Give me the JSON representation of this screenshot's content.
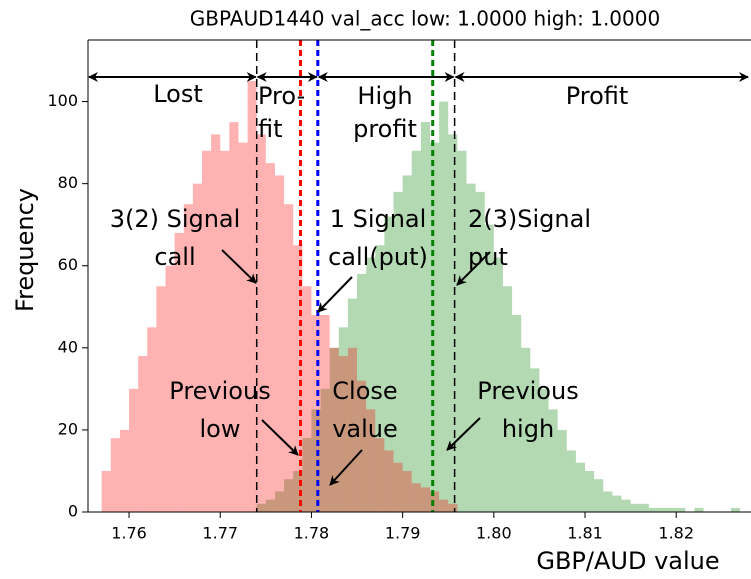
{
  "chart_data": {
    "type": "histogram",
    "title": "GBPAUD1440 val_acc low: 1.0000 high: 1.0000",
    "xlabel": "GBP/AUD value",
    "ylabel": "Frequency",
    "xlim": [
      1.7555,
      1.8282
    ],
    "ylim": [
      0,
      115
    ],
    "xticks": [
      1.76,
      1.77,
      1.78,
      1.79,
      {
        "value": 1.8,
        "label": "1.80"
      },
      1.81,
      1.82
    ],
    "yticks": [
      0,
      20,
      40,
      60,
      80,
      100
    ],
    "opacity": 0.3,
    "series": [
      {
        "color": "#008000",
        "bins": [
          1.774,
          1.775,
          1.776,
          1.777,
          1.778,
          1.779,
          1.78,
          1.781,
          1.782,
          1.783,
          1.784,
          1.785,
          1.786,
          1.787,
          1.788,
          1.789,
          1.79,
          1.791,
          1.792,
          1.793,
          1.794,
          1.795,
          1.796,
          1.797,
          1.798,
          1.799,
          1.8,
          1.801,
          1.802,
          1.803,
          1.804,
          1.805,
          1.806,
          1.807,
          1.808,
          1.809,
          1.81,
          1.811,
          1.812,
          1.813,
          1.814,
          1.815,
          1.816,
          1.817,
          1.818,
          1.819,
          1.82,
          1.821,
          1.822,
          1.823,
          1.824,
          1.825,
          1.826,
          1.827
        ],
        "values": [
          2,
          3,
          5,
          8,
          10,
          18,
          25,
          30,
          40,
          45,
          52,
          58,
          62,
          65,
          72,
          78,
          82,
          88,
          95,
          90,
          100,
          92,
          88,
          80,
          78,
          70,
          62,
          55,
          48,
          40,
          35,
          30,
          25,
          20,
          15,
          12,
          10,
          8,
          5,
          4,
          3,
          2,
          2,
          1,
          1,
          1,
          1,
          0,
          1,
          0,
          0,
          0,
          1
        ]
      },
      {
        "color": "#ff0000",
        "bins": [
          1.757,
          1.758,
          1.759,
          1.76,
          1.761,
          1.762,
          1.763,
          1.764,
          1.765,
          1.766,
          1.767,
          1.768,
          1.769,
          1.77,
          1.771,
          1.772,
          1.773,
          1.774,
          1.775,
          1.776,
          1.777,
          1.778,
          1.779,
          1.78,
          1.781,
          1.782,
          1.783,
          1.784,
          1.785,
          1.786,
          1.787,
          1.788,
          1.789,
          1.79,
          1.791,
          1.792,
          1.793,
          1.794,
          1.795,
          1.796
        ],
        "values": [
          10,
          18,
          20,
          30,
          38,
          45,
          55,
          60,
          68,
          75,
          80,
          88,
          92,
          88,
          95,
          90,
          105,
          92,
          85,
          82,
          75,
          65,
          55,
          48,
          48,
          40,
          38,
          40,
          32,
          25,
          18,
          15,
          12,
          10,
          7,
          6,
          5,
          3,
          2
        ]
      }
    ],
    "vlines": [
      {
        "value": 1.774,
        "color": "#000000"
      },
      {
        "value": 1.7788,
        "color": "#ff0000"
      },
      {
        "value": 1.7807,
        "color": "#0000ff"
      },
      {
        "value": 1.7933,
        "color": "#008000"
      },
      {
        "value": 1.7957,
        "color": "#000000"
      }
    ],
    "annotations": [
      {
        "lines": [
          "Lost"
        ]
      },
      {
        "lines": [
          "Pro-",
          "fit"
        ]
      },
      {
        "lines": [
          "High",
          "profit"
        ]
      },
      {
        "lines": [
          "Profit"
        ]
      },
      {
        "lines": [
          "3(2) Signal",
          "call"
        ]
      },
      {
        "lines": [
          "1 Signal",
          "call(put)"
        ]
      },
      {
        "lines": [
          "2(3)Signal",
          "put"
        ]
      },
      {
        "lines": [
          "Previous",
          "low"
        ]
      },
      {
        "lines": [
          "Close",
          "value"
        ]
      },
      {
        "lines": [
          "Previous",
          "high"
        ]
      }
    ]
  }
}
